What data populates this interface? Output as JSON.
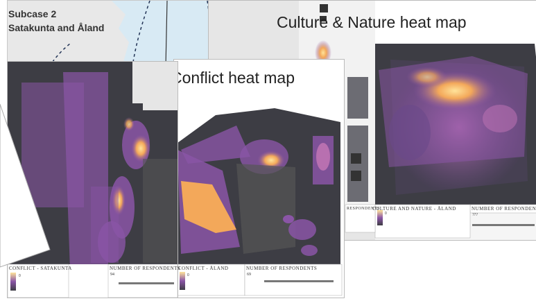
{
  "subcase": {
    "line1": "Subcase 2",
    "line2": "Satakunta and Åland"
  },
  "maps": {
    "culture_nature": {
      "title": "Culture & Nature heat map",
      "legend_label": "CULTURE AND NATURE - ÅLAND",
      "respondents_label": "NUMBER OF RESPONDENTS",
      "respondents_value": "???",
      "ramp_value": "0"
    },
    "conflict_aland": {
      "title": "Conflict heat map",
      "legend_label": "CONFLICT - ÅLAND",
      "respondents_label": "NUMBER OF RESPONDENTS",
      "respondents_value": "69",
      "ramp_value": "0"
    },
    "conflict_satakunta": {
      "legend_label": "CONFLICT - SATAKUNTA",
      "respondents_label": "NUMBER OF RESPONDENTS",
      "respondents_value": "94",
      "ramp_value": "0"
    },
    "respondents_small": "RESPONDENTS"
  },
  "colors": {
    "dark_base": "#3d3d44",
    "purple": "#8a55a6",
    "hot": "#f3a85a",
    "hottest": "#ffe39a",
    "water": "#d8eaf4"
  }
}
